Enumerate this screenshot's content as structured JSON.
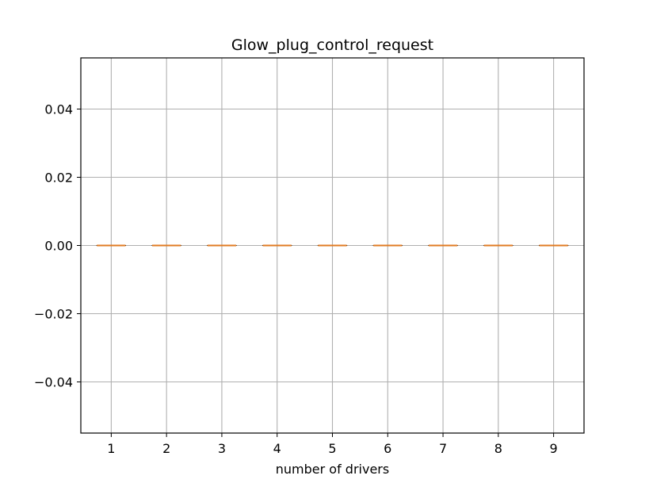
{
  "chart_data": {
    "type": "box",
    "title": "Glow_plug_control_request",
    "xlabel": "number of drivers",
    "ylabel": "",
    "categories": [
      "1",
      "2",
      "3",
      "4",
      "5",
      "6",
      "7",
      "8",
      "9"
    ],
    "boxes": [
      {
        "category": "1",
        "min": 0,
        "q1": 0,
        "median": 0,
        "q3": 0,
        "max": 0
      },
      {
        "category": "2",
        "min": 0,
        "q1": 0,
        "median": 0,
        "q3": 0,
        "max": 0
      },
      {
        "category": "3",
        "min": 0,
        "q1": 0,
        "median": 0,
        "q3": 0,
        "max": 0
      },
      {
        "category": "4",
        "min": 0,
        "q1": 0,
        "median": 0,
        "q3": 0,
        "max": 0
      },
      {
        "category": "5",
        "min": 0,
        "q1": 0,
        "median": 0,
        "q3": 0,
        "max": 0
      },
      {
        "category": "6",
        "min": 0,
        "q1": 0,
        "median": 0,
        "q3": 0,
        "max": 0
      },
      {
        "category": "7",
        "min": 0,
        "q1": 0,
        "median": 0,
        "q3": 0,
        "max": 0
      },
      {
        "category": "8",
        "min": 0,
        "q1": 0,
        "median": 0,
        "q3": 0,
        "max": 0
      },
      {
        "category": "9",
        "min": 0,
        "q1": 0,
        "median": 0,
        "q3": 0,
        "max": 0
      }
    ],
    "ylim": [
      -0.055,
      0.055
    ],
    "yticks": [
      -0.04,
      -0.02,
      0.0,
      0.02,
      0.04
    ],
    "ytick_labels": [
      "−0.04",
      "−0.02",
      "0.00",
      "0.02",
      "0.04"
    ],
    "grid": true,
    "colors": {
      "median": "#e07b23",
      "box": "#000000",
      "grid": "#b0b0b0",
      "axes": "#000000"
    }
  }
}
